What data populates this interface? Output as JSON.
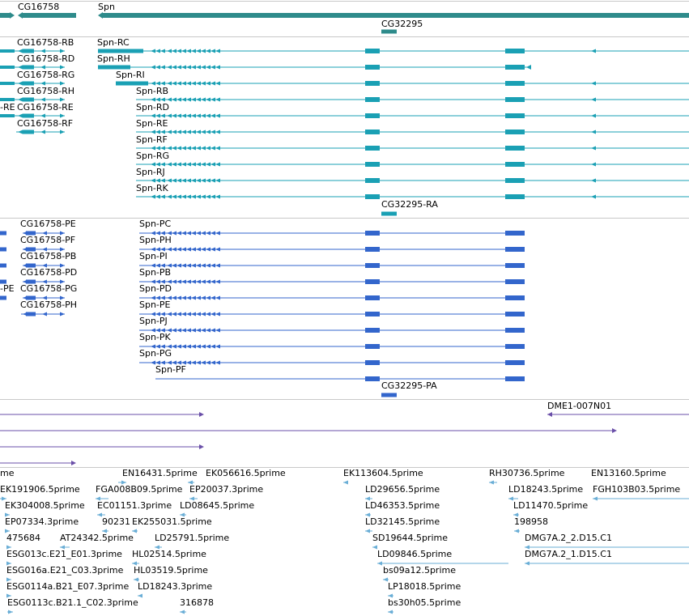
{
  "colors": {
    "gene": "#2e8b8b",
    "mrna": "#1aa0b4",
    "protein": "#3366cc",
    "cdna": "#6a4fa8",
    "est": "#6aaed6",
    "divider": "#c8c8c8"
  },
  "genes": [
    {
      "label": "CG16758"
    },
    {
      "label": "Spn"
    },
    {
      "label": "CG32295"
    }
  ],
  "mrna": {
    "cg16758": [
      {
        "label": "CG16758-RB"
      },
      {
        "label": "CG16758-RD"
      },
      {
        "label": "CG16758-RG"
      },
      {
        "label": "CG16758-RH"
      },
      {
        "label": "CG16758-RE"
      },
      {
        "label": "CG16758-RF"
      }
    ],
    "left_clip": "-RE",
    "spn": [
      {
        "label": "Spn-RC"
      },
      {
        "label": "Spn-RH"
      },
      {
        "label": "Spn-RI"
      },
      {
        "label": "Spn-RB"
      },
      {
        "label": "Spn-RD"
      },
      {
        "label": "Spn-RE"
      },
      {
        "label": "Spn-RF"
      },
      {
        "label": "Spn-RG"
      },
      {
        "label": "Spn-RJ"
      },
      {
        "label": "Spn-RK"
      }
    ],
    "cg32295": {
      "label": "CG32295-RA"
    }
  },
  "protein": {
    "cg16758": [
      {
        "label": "CG16758-PE"
      },
      {
        "label": "CG16758-PF"
      },
      {
        "label": "CG16758-PB"
      },
      {
        "label": "CG16758-PD"
      },
      {
        "label": "CG16758-PG"
      },
      {
        "label": "CG16758-PH"
      }
    ],
    "left_clip": "-PE",
    "spn": [
      {
        "label": "Spn-PC"
      },
      {
        "label": "Spn-PH"
      },
      {
        "label": "Spn-PI"
      },
      {
        "label": "Spn-PB"
      },
      {
        "label": "Spn-PD"
      },
      {
        "label": "Spn-PE"
      },
      {
        "label": "Spn-PJ"
      },
      {
        "label": "Spn-PK"
      },
      {
        "label": "Spn-PG"
      },
      {
        "label": "Spn-PF"
      }
    ],
    "cg32295": {
      "label": "CG32295-PA"
    }
  },
  "cdna": {
    "label": "DME1-007N01"
  },
  "est_labels": [
    "me",
    "EN16431.5prime",
    "EK056616.5prime",
    "EK113604.5prime",
    "RH30736.5prime",
    "EN13160.5prime",
    "EK191906.5prime",
    "FGA008B09.5prime",
    "EP20037.3prime",
    "LD29656.5prime",
    "LD18243.5prime",
    "FGH103B03.5prime",
    "EK304008.5prime",
    "EC01151.3prime",
    "LD08645.5prime",
    "LD46353.5prime",
    "LD11470.5prime",
    "EP07334.3prime",
    "90231",
    "EK255031.5prime",
    "LD32145.5prime",
    "198958",
    "475684",
    "AT24342.5prime",
    "LD25791.5prime",
    "SD19644.5prime",
    "DMG7A.2_2.D15.C1",
    "ESG013c.E21_E01.3prime",
    "HL02514.5prime",
    "LD09846.5prime",
    "DMG7A.2_1.D15.C1",
    "ESG016a.E21_C03.3prime",
    "HL03519.5prime",
    "bs09a12.5prime",
    "ESG0114a.B21_E07.3prime",
    "LD18243.3prime",
    "LP18018.5prime",
    "ESG0113c.B21.1_C02.3prime",
    "316878",
    "bs30h05.5prime"
  ]
}
